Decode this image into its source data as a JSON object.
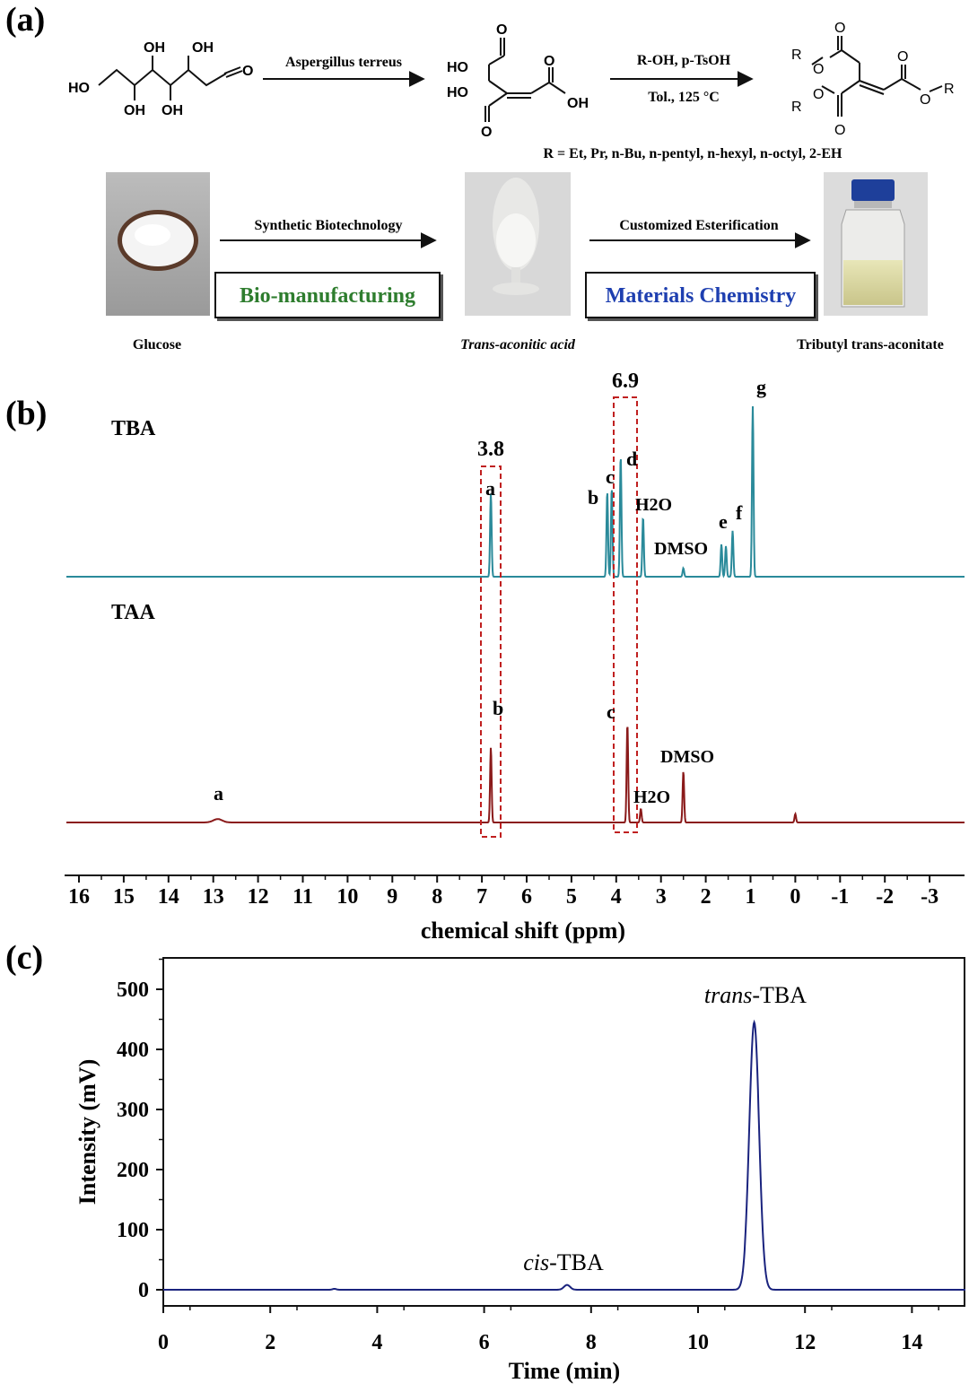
{
  "panel_a": {
    "label": "(a)",
    "arrow1_label": "Aspergillus terreus",
    "arrow2_line1": "R-OH, p-TsOH",
    "arrow2_line2": "Tol., 125 °C",
    "r_groups": "R = Et, Pr, n-Bu, n-pentyl, n-hexyl, n-octyl, 2-EH",
    "glucose_oh": [
      "OH",
      "OH",
      "HO",
      "OH",
      "OH"
    ],
    "taa_atoms": [
      "O",
      "HO",
      "O",
      "HO",
      "OH",
      "O"
    ],
    "ester_atoms": [
      "R",
      "O",
      "O",
      "O",
      "R",
      "O",
      "O",
      "O",
      "R"
    ],
    "step1": "Synthetic Biotechnology",
    "step2": "Customized Esterification",
    "box1": "Bio-manufacturing",
    "box2": "Materials Chemistry",
    "caption1": "Glucose",
    "caption2": "Trans-aconitic acid",
    "caption3": "Tributyl trans-aconitate"
  },
  "chart_data": [
    {
      "panel": "(b)",
      "type": "line",
      "title": "",
      "xlabel": "chemical shift (ppm)",
      "ylabel": "",
      "xlim": [
        16.3,
        -3.7
      ],
      "xticks": [
        "16",
        "15",
        "14",
        "13",
        "12",
        "11",
        "10",
        "9",
        "8",
        "7",
        "6",
        "5",
        "4",
        "3",
        "2",
        "1",
        "0",
        "-1",
        "-2",
        "-3"
      ],
      "highlight_boxes": [
        {
          "label": "3.8",
          "range_ppm": [
            6.6,
            7.0
          ]
        },
        {
          "label": "6.9",
          "range_ppm": [
            3.55,
            4.0
          ]
        }
      ],
      "series": [
        {
          "name": "TBA",
          "color": "#2a8a9a",
          "peaks_ppm": [
            {
              "ppm": 6.8,
              "height": 0.49
            },
            {
              "ppm": 4.2,
              "height": 0.5
            },
            {
              "ppm": 4.1,
              "height": 0.52
            },
            {
              "ppm": 3.9,
              "height": 0.71
            },
            {
              "ppm": 3.4,
              "height": 0.35
            },
            {
              "ppm": 2.5,
              "height": 0.05
            },
            {
              "ppm": 1.65,
              "height": 0.19
            },
            {
              "ppm": 1.55,
              "height": 0.18
            },
            {
              "ppm": 1.4,
              "height": 0.27
            },
            {
              "ppm": 0.95,
              "height": 1.0
            }
          ],
          "peak_labels": [
            "a",
            "b",
            "c",
            "d",
            "H2O",
            "DMSO",
            "e",
            "f",
            "g"
          ]
        },
        {
          "name": "TAA",
          "color": "#8a1a1a",
          "peaks_ppm": [
            {
              "ppm": 12.9,
              "height": 0.02
            },
            {
              "ppm": 6.8,
              "height": 0.44
            },
            {
              "ppm": 3.75,
              "height": 0.58
            },
            {
              "ppm": 3.45,
              "height": 0.08
            },
            {
              "ppm": 2.5,
              "height": 0.3
            },
            {
              "ppm": 0.0,
              "height": 0.05
            }
          ],
          "peak_labels": [
            "a",
            "b",
            "c",
            "H2O",
            "DMSO"
          ]
        }
      ]
    },
    {
      "panel": "(c)",
      "type": "line",
      "title": "",
      "xlabel": "Time (min)",
      "ylabel": "Intensity (mV)",
      "xlim": [
        0,
        15
      ],
      "ylim": [
        -30,
        545
      ],
      "xticks": [
        "0",
        "2",
        "4",
        "6",
        "8",
        "10",
        "12",
        "14"
      ],
      "yticks": [
        "0",
        "100",
        "200",
        "300",
        "400",
        "500"
      ],
      "series": [
        {
          "name": "HPLC trace",
          "color": "#1a237e",
          "peaks": [
            {
              "label": "cis-TBA",
              "x": 7.55,
              "y": 8
            },
            {
              "label": "trans-TBA",
              "x": 11.05,
              "y": 445
            }
          ]
        }
      ],
      "annotation_parts": {
        "cis_italic": "cis",
        "trans_italic": "trans",
        "suffix": "-TBA"
      }
    }
  ]
}
